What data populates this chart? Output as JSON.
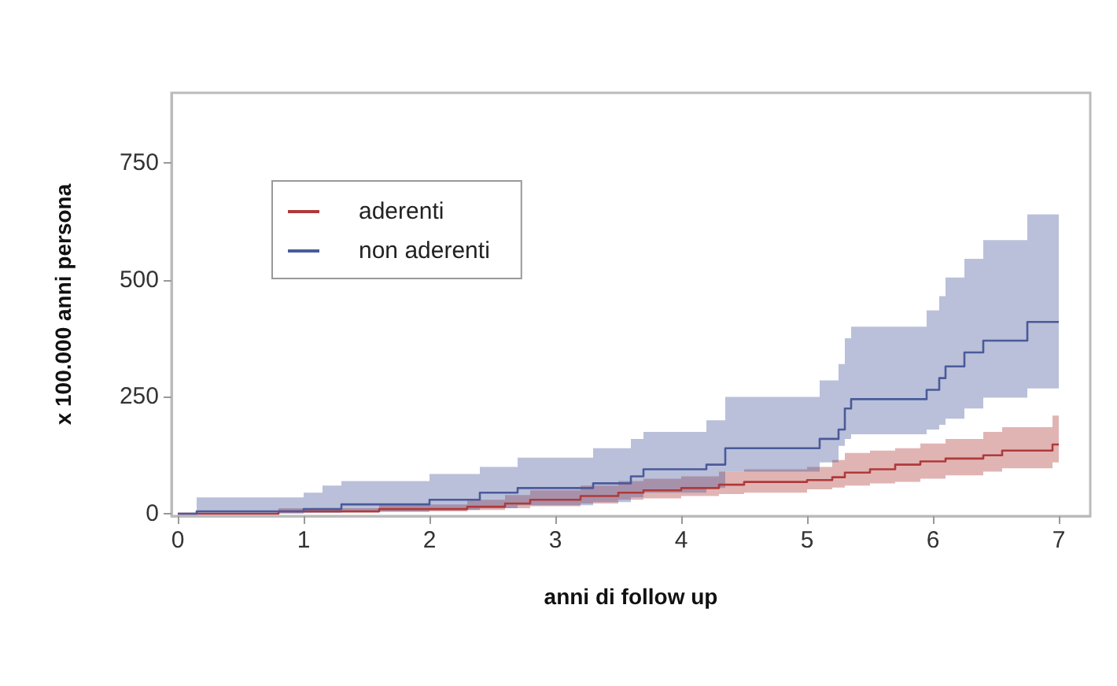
{
  "chart_data": {
    "type": "step",
    "xlabel": "anni di follow up",
    "ylabel": "x 100.000 anni persona",
    "xlim": [
      -0.05,
      7.25
    ],
    "xticks": [
      0,
      1,
      2,
      3,
      4,
      5,
      6,
      7
    ],
    "ylim": [
      -5,
      900
    ],
    "yticks": [
      0,
      250,
      500,
      750
    ],
    "grid": false,
    "legend": "top left",
    "marker": "none",
    "line_style": "solid",
    "series": [
      {
        "name": "aderenti",
        "color": "#b03a3a",
        "x": [
          0,
          0.8,
          1.6,
          2.3,
          2.6,
          2.8,
          3.2,
          3.5,
          3.7,
          4.0,
          4.3,
          4.5,
          5.0,
          5.2,
          5.3,
          5.5,
          5.7,
          5.9,
          6.1,
          6.4,
          6.55,
          6.95,
          7.0
        ],
        "values": [
          0,
          5,
          10,
          15,
          22,
          30,
          38,
          45,
          50,
          55,
          62,
          68,
          72,
          78,
          88,
          95,
          105,
          112,
          118,
          125,
          135,
          148,
          148
        ],
        "upper": [
          0,
          12,
          20,
          30,
          40,
          50,
          60,
          70,
          75,
          80,
          90,
          95,
          100,
          115,
          130,
          135,
          140,
          150,
          160,
          175,
          185,
          210,
          210
        ],
        "lower": [
          0,
          2,
          5,
          8,
          12,
          16,
          22,
          30,
          33,
          38,
          42,
          45,
          52,
          56,
          60,
          65,
          68,
          75,
          82,
          90,
          97,
          110,
          110
        ]
      },
      {
        "name": "non aderenti",
        "color": "#4a5a9a",
        "x": [
          0,
          0.15,
          1.0,
          1.15,
          1.3,
          2.0,
          2.4,
          2.7,
          3.3,
          3.6,
          3.7,
          4.2,
          4.35,
          5.1,
          5.25,
          5.3,
          5.35,
          5.95,
          6.05,
          6.1,
          6.25,
          6.4,
          6.75,
          7.0
        ],
        "values": [
          0,
          5,
          10,
          10,
          20,
          30,
          45,
          55,
          65,
          80,
          95,
          105,
          140,
          160,
          180,
          225,
          245,
          265,
          290,
          315,
          345,
          370,
          410,
          410
        ],
        "upper": [
          0,
          35,
          45,
          60,
          70,
          85,
          100,
          120,
          140,
          160,
          175,
          200,
          250,
          285,
          320,
          375,
          400,
          435,
          465,
          505,
          545,
          585,
          640,
          640
        ],
        "lower": [
          0,
          0,
          2,
          2,
          4,
          8,
          12,
          18,
          25,
          35,
          45,
          55,
          90,
          110,
          145,
          160,
          170,
          180,
          190,
          203,
          225,
          248,
          268,
          268
        ]
      }
    ]
  }
}
